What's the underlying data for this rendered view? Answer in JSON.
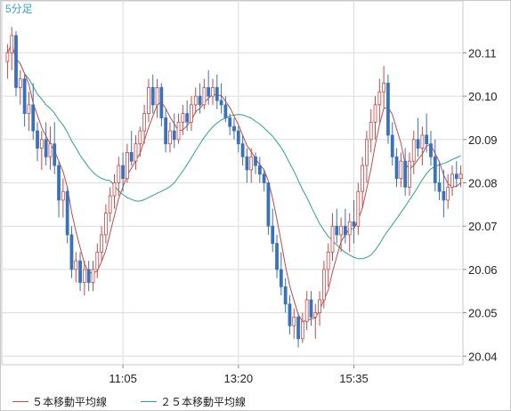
{
  "chart_data": {
    "type": "candlestick",
    "title": "5分足",
    "y_ticks": [
      "20.11",
      "20.10",
      "20.09",
      "20.08",
      "20.07",
      "20.06",
      "20.05",
      "20.04"
    ],
    "y_range": [
      20.038,
      20.122
    ],
    "x_ticks": [
      {
        "label": "11:05",
        "bar": 27
      },
      {
        "label": "13:20",
        "bar": 54
      },
      {
        "label": "15:35",
        "bar": 81
      }
    ],
    "bars_count": 107,
    "ma_fast": {
      "name": "５本移動平均線",
      "color": "#c24a4a"
    },
    "ma_slow": {
      "name": "２５本移動平均線",
      "color": "#2aa585"
    },
    "up_color": "#c24a4a",
    "down_color": "#3a72b8",
    "ohlc": [
      [
        20.108,
        20.112,
        20.104,
        20.11
      ],
      [
        20.11,
        20.116,
        20.106,
        20.114
      ],
      [
        20.114,
        20.115,
        20.1,
        20.102
      ],
      [
        20.102,
        20.106,
        20.098,
        20.104
      ],
      [
        20.104,
        20.105,
        20.093,
        20.096
      ],
      [
        20.096,
        20.101,
        20.092,
        20.098
      ],
      [
        20.098,
        20.103,
        20.09,
        20.092
      ],
      [
        20.092,
        20.094,
        20.085,
        20.088
      ],
      [
        20.088,
        20.092,
        20.083,
        20.09
      ],
      [
        20.09,
        20.094,
        20.084,
        20.086
      ],
      [
        20.086,
        20.093,
        20.083,
        20.089
      ],
      [
        20.089,
        20.094,
        20.082,
        20.084
      ],
      [
        20.084,
        20.085,
        20.072,
        20.076
      ],
      [
        20.076,
        20.081,
        20.072,
        20.078
      ],
      [
        20.078,
        20.079,
        20.066,
        20.068
      ],
      [
        20.068,
        20.07,
        20.058,
        20.06
      ],
      [
        20.06,
        20.064,
        20.057,
        20.062
      ],
      [
        20.062,
        20.064,
        20.055,
        20.057
      ],
      [
        20.057,
        20.062,
        20.054,
        20.06
      ],
      [
        20.06,
        20.062,
        20.055,
        20.057
      ],
      [
        20.057,
        20.062,
        20.055,
        20.06
      ],
      [
        20.06,
        20.066,
        20.058,
        20.064
      ],
      [
        20.064,
        20.07,
        20.062,
        20.068
      ],
      [
        20.068,
        20.075,
        20.066,
        20.073
      ],
      [
        20.073,
        20.079,
        20.071,
        20.077
      ],
      [
        20.077,
        20.082,
        20.074,
        20.08
      ],
      [
        20.08,
        20.086,
        20.077,
        20.084
      ],
      [
        20.084,
        20.087,
        20.078,
        20.081
      ],
      [
        20.081,
        20.089,
        20.08,
        20.087
      ],
      [
        20.087,
        20.092,
        20.084,
        20.085
      ],
      [
        20.085,
        20.091,
        20.083,
        20.089
      ],
      [
        20.089,
        20.093,
        20.086,
        20.092
      ],
      [
        20.092,
        20.098,
        20.089,
        20.096
      ],
      [
        20.096,
        20.104,
        20.094,
        20.102
      ],
      [
        20.102,
        20.105,
        20.096,
        20.098
      ],
      [
        20.098,
        20.104,
        20.095,
        20.102
      ],
      [
        20.102,
        20.103,
        20.093,
        20.095
      ],
      [
        20.095,
        20.097,
        20.087,
        20.089
      ],
      [
        20.089,
        20.094,
        20.087,
        20.092
      ],
      [
        20.092,
        20.096,
        20.088,
        20.09
      ],
      [
        20.09,
        20.096,
        20.089,
        20.094
      ],
      [
        20.094,
        20.098,
        20.091,
        20.096
      ],
      [
        20.096,
        20.099,
        20.092,
        20.094
      ],
      [
        20.094,
        20.1,
        20.092,
        20.098
      ],
      [
        20.098,
        20.102,
        20.096,
        20.1
      ],
      [
        20.1,
        20.103,
        20.096,
        20.098
      ],
      [
        20.098,
        20.104,
        20.097,
        20.102
      ],
      [
        20.102,
        20.106,
        20.098,
        20.1
      ],
      [
        20.1,
        20.104,
        20.098,
        20.102
      ],
      [
        20.102,
        20.105,
        20.097,
        20.099
      ],
      [
        20.099,
        20.103,
        20.096,
        20.098
      ],
      [
        20.098,
        20.1,
        20.094,
        20.095
      ],
      [
        20.095,
        20.096,
        20.091,
        20.093
      ],
      [
        20.093,
        20.095,
        20.09,
        20.092
      ],
      [
        20.092,
        20.093,
        20.087,
        20.089
      ],
      [
        20.089,
        20.091,
        20.084,
        20.086
      ],
      [
        20.086,
        20.088,
        20.08,
        20.083
      ],
      [
        20.083,
        20.088,
        20.08,
        20.086
      ],
      [
        20.086,
        20.087,
        20.082,
        20.084
      ],
      [
        20.084,
        20.086,
        20.08,
        20.082
      ],
      [
        20.082,
        20.083,
        20.078,
        20.08
      ],
      [
        20.08,
        20.08,
        20.068,
        20.07
      ],
      [
        20.07,
        20.074,
        20.064,
        20.066
      ],
      [
        20.066,
        20.068,
        20.058,
        20.06
      ],
      [
        20.06,
        20.064,
        20.054,
        20.056
      ],
      [
        20.056,
        20.058,
        20.05,
        20.052
      ],
      [
        20.052,
        20.054,
        20.045,
        20.047
      ],
      [
        20.047,
        20.051,
        20.044,
        20.049
      ],
      [
        20.049,
        20.05,
        20.042,
        20.044
      ],
      [
        20.044,
        20.05,
        20.043,
        20.048
      ],
      [
        20.048,
        20.055,
        20.046,
        20.053
      ],
      [
        20.053,
        20.055,
        20.047,
        20.049
      ],
      [
        20.049,
        20.052,
        20.044,
        20.05
      ],
      [
        20.05,
        20.055,
        20.047,
        20.053
      ],
      [
        20.053,
        20.062,
        20.051,
        20.06
      ],
      [
        20.06,
        20.066,
        20.056,
        20.064
      ],
      [
        20.064,
        20.073,
        20.062,
        20.07
      ],
      [
        20.07,
        20.074,
        20.066,
        20.068
      ],
      [
        20.068,
        20.072,
        20.064,
        20.07
      ],
      [
        20.07,
        20.074,
        20.066,
        20.068
      ],
      [
        20.068,
        20.073,
        20.064,
        20.071
      ],
      [
        20.071,
        20.076,
        20.066,
        20.07
      ],
      [
        20.07,
        20.08,
        20.068,
        20.078
      ],
      [
        20.078,
        20.086,
        20.074,
        20.084
      ],
      [
        20.084,
        20.092,
        20.08,
        20.09
      ],
      [
        20.09,
        20.097,
        20.087,
        20.094
      ],
      [
        20.094,
        20.1,
        20.09,
        20.098
      ],
      [
        20.098,
        20.104,
        20.094,
        20.101
      ],
      [
        20.101,
        20.107,
        20.097,
        20.103
      ],
      [
        20.103,
        20.105,
        20.089,
        20.091
      ],
      [
        20.091,
        20.094,
        20.084,
        20.086
      ],
      [
        20.086,
        20.088,
        20.079,
        20.081
      ],
      [
        20.081,
        20.087,
        20.079,
        20.085
      ],
      [
        20.085,
        20.088,
        20.077,
        20.079
      ],
      [
        20.079,
        20.087,
        20.077,
        20.085
      ],
      [
        20.085,
        20.092,
        20.082,
        20.09
      ],
      [
        20.09,
        20.095,
        20.086,
        20.088
      ],
      [
        20.088,
        20.093,
        20.084,
        20.091
      ],
      [
        20.091,
        20.096,
        20.087,
        20.089
      ],
      [
        20.089,
        20.092,
        20.084,
        20.086
      ],
      [
        20.086,
        20.09,
        20.078,
        20.08
      ],
      [
        20.08,
        20.085,
        20.076,
        20.078
      ],
      [
        20.078,
        20.083,
        20.072,
        20.076
      ],
      [
        20.076,
        20.082,
        20.074,
        20.079
      ],
      [
        20.079,
        20.084,
        20.077,
        20.082
      ],
      [
        20.082,
        20.085,
        20.079,
        20.081
      ],
      [
        20.081,
        20.084,
        20.079,
        20.082
      ]
    ]
  }
}
